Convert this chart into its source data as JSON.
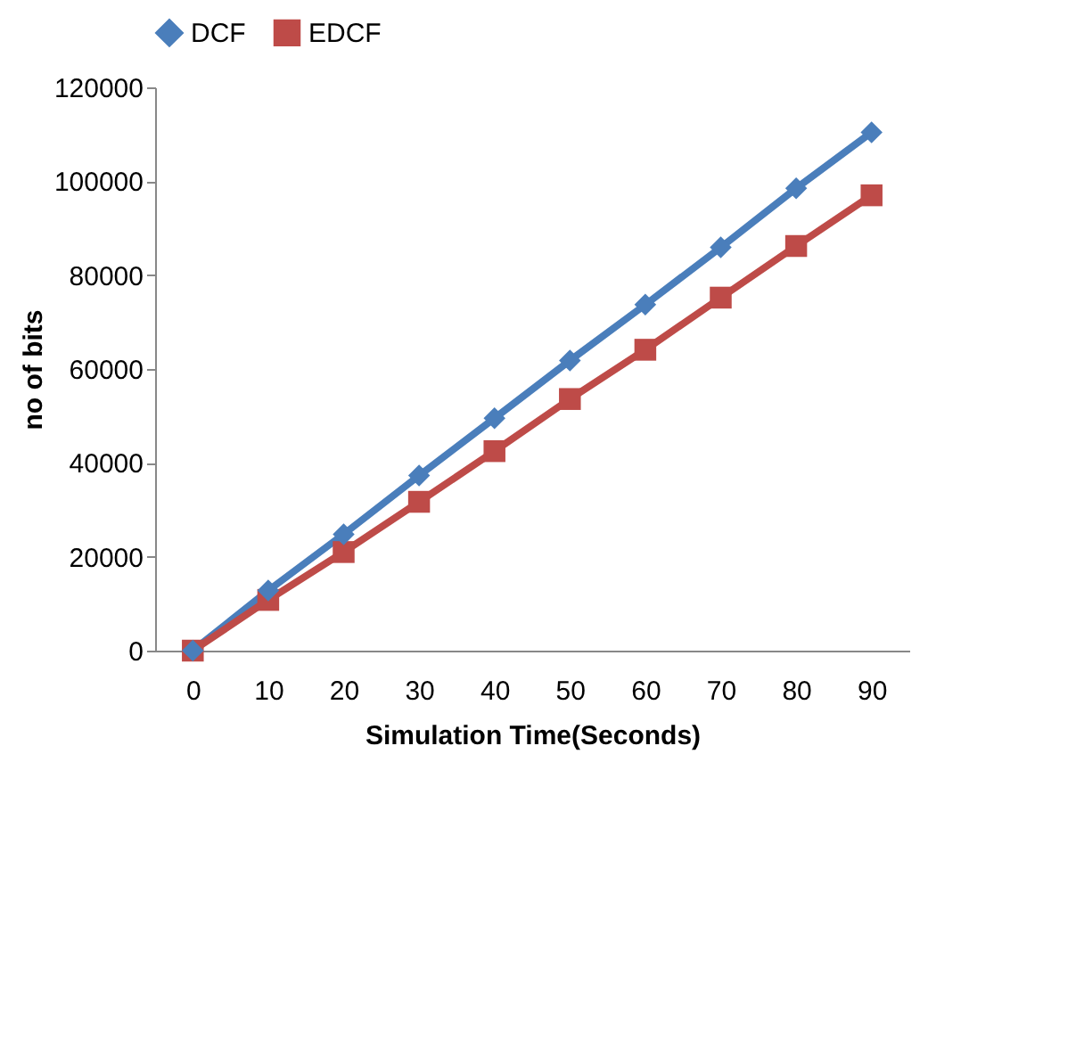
{
  "chart_data": {
    "type": "line",
    "xlabel": "Simulation Time(Seconds)",
    "ylabel": "no of bits",
    "categories": [
      "0",
      "10",
      "20",
      "30",
      "40",
      "50",
      "60",
      "70",
      "80",
      "90"
    ],
    "series": [
      {
        "name": "DCF",
        "color": "#4a7ebb",
        "marker": "diamond",
        "values": [
          0,
          12800,
          24800,
          37300,
          49500,
          61800,
          73700,
          85900,
          98500,
          110400
        ]
      },
      {
        "name": "EDCF",
        "color": "#be4b48",
        "marker": "square",
        "values": [
          0,
          10800,
          21000,
          31700,
          42500,
          53600,
          64100,
          75200,
          86200,
          97000
        ]
      }
    ],
    "ylim": [
      0,
      120000
    ],
    "yticks": [
      0,
      20000,
      40000,
      60000,
      80000,
      100000,
      120000
    ],
    "grid": false,
    "legend": "top",
    "line_style": "solid"
  }
}
